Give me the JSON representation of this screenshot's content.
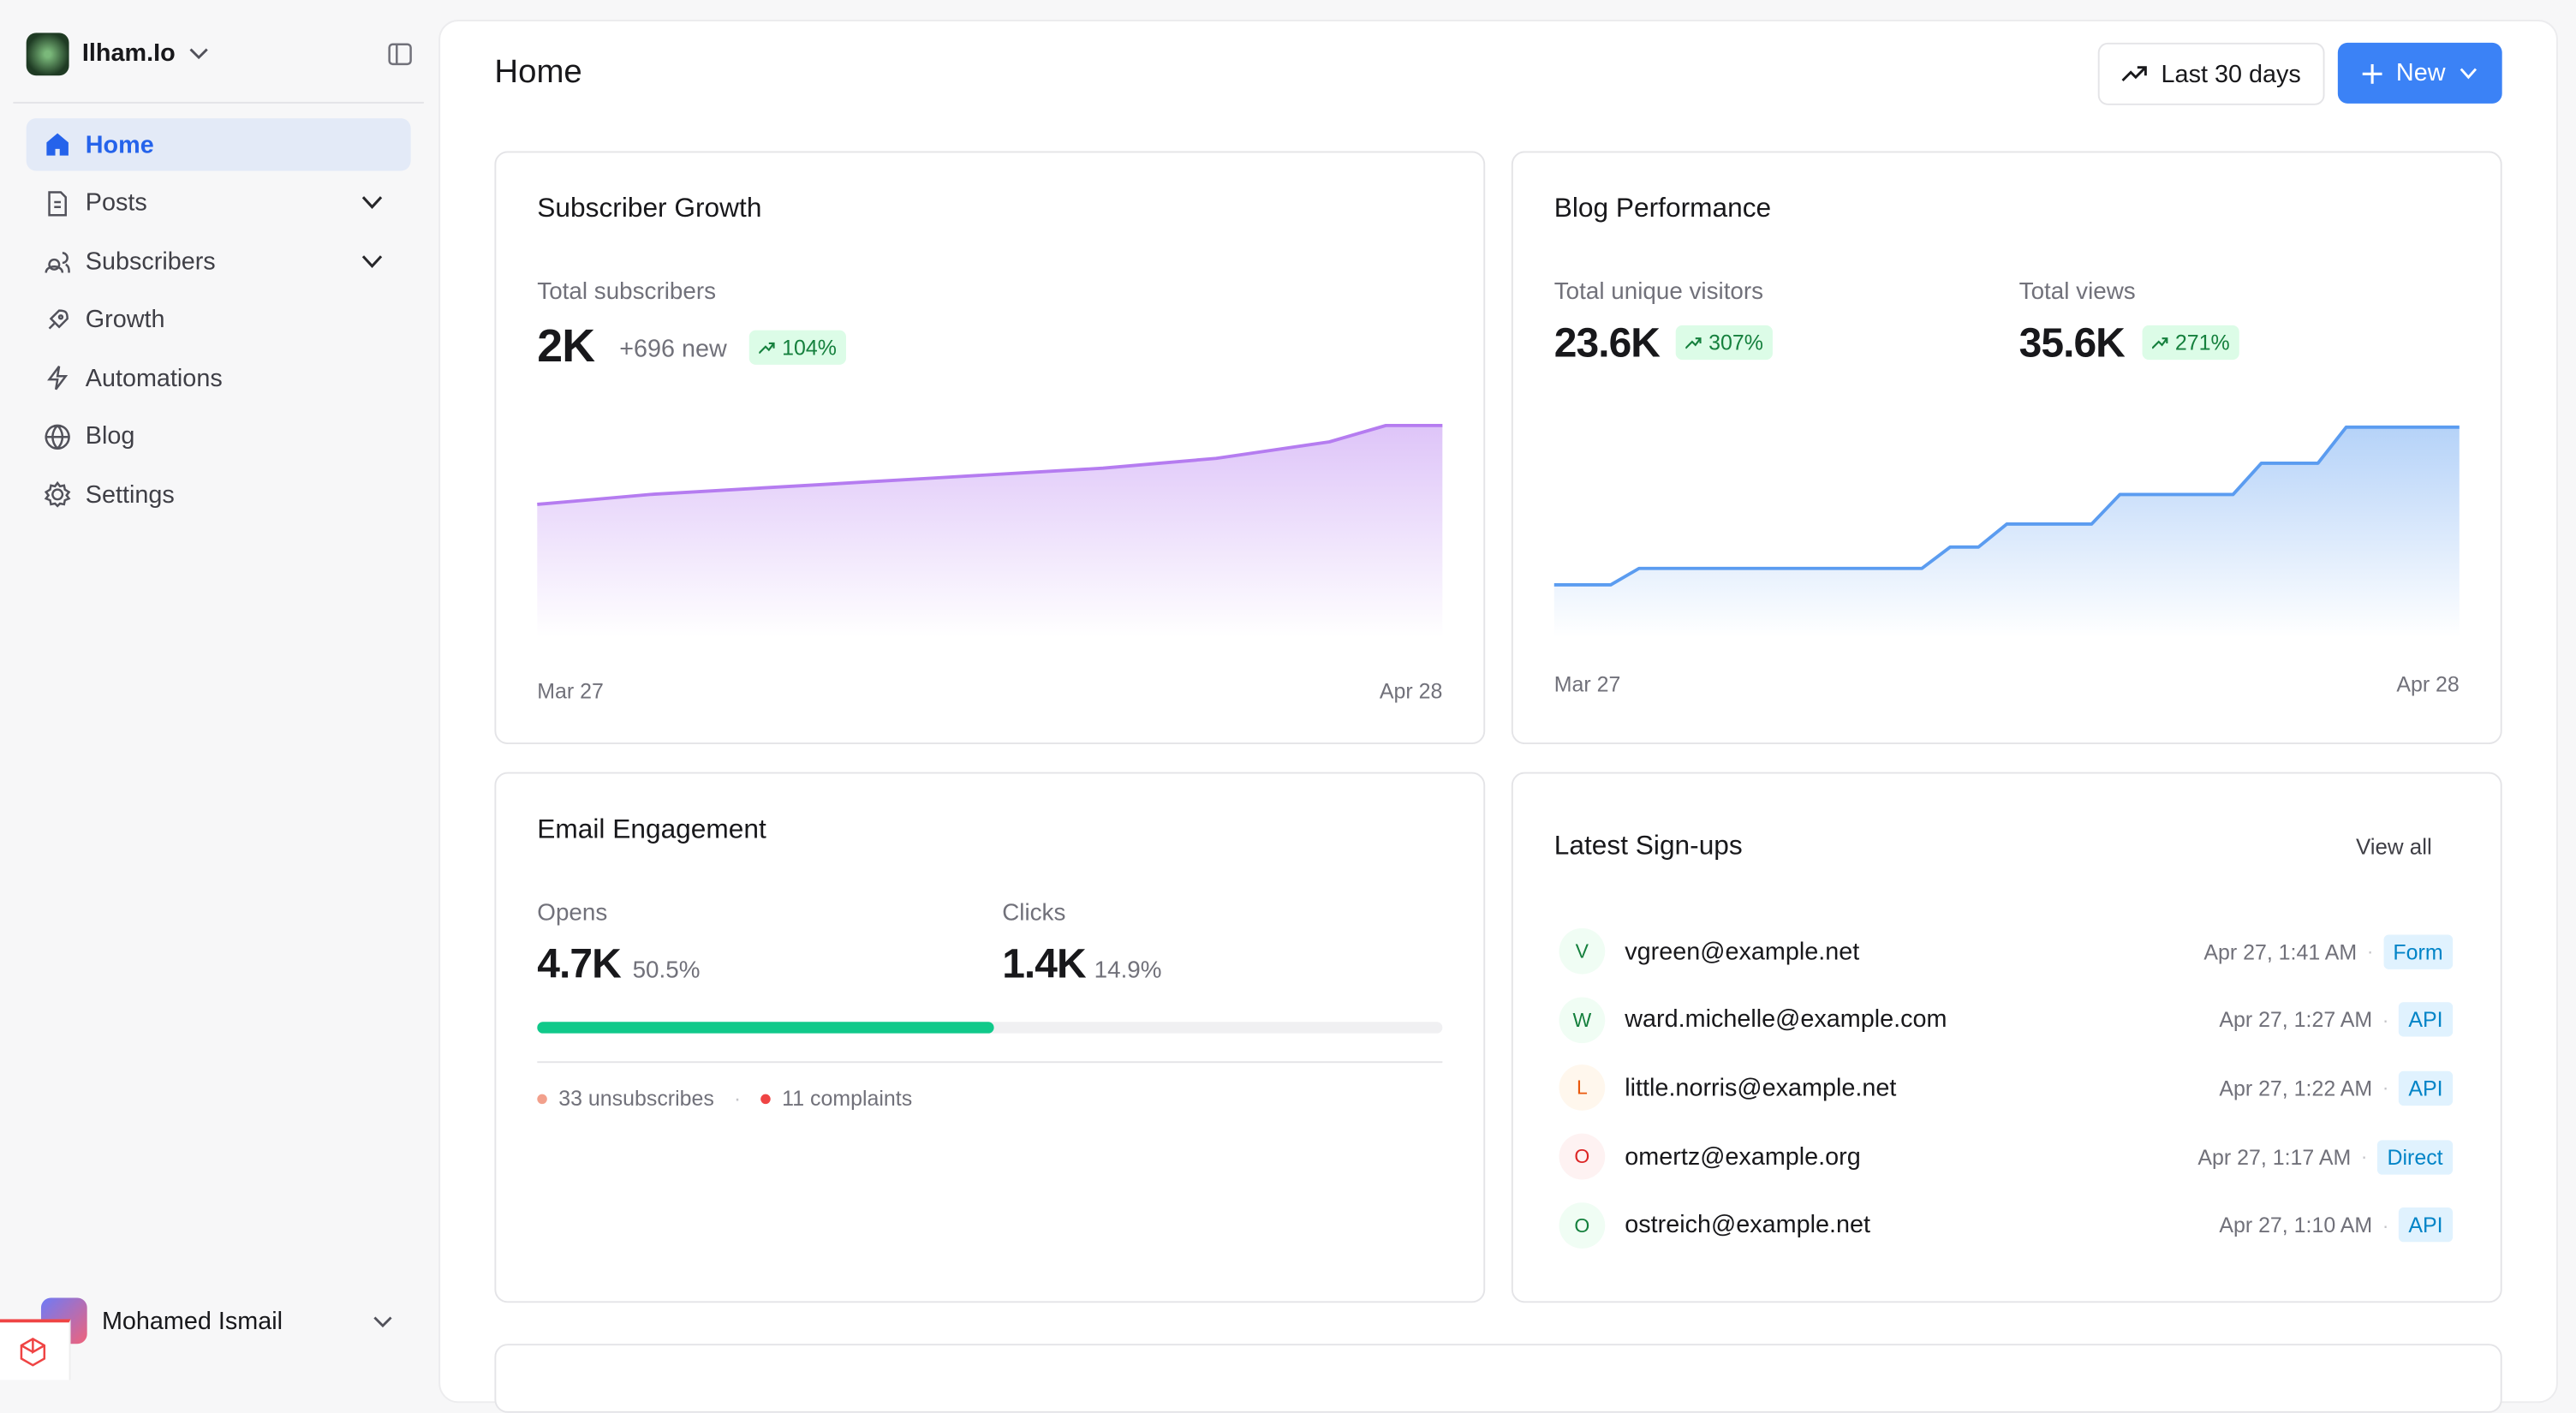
{
  "sidebar": {
    "workspace": "Ilham.Io",
    "nav": [
      "Home",
      "Posts",
      "Subscribers",
      "Growth",
      "Automations",
      "Blog",
      "Settings"
    ],
    "user": "Mohamed Ismail"
  },
  "header": {
    "title": "Home",
    "range_button": "Last 30 days",
    "new_button": "New"
  },
  "cards": {
    "subscriber_growth": {
      "title": "Subscriber Growth",
      "stat_label": "Total subscribers",
      "stat_value": "2K",
      "stat_new": "+696 new",
      "stat_change": "104%"
    },
    "blog_performance": {
      "title": "Blog Performance",
      "stats": [
        {
          "label": "Total unique visitors",
          "value": "23.6K",
          "change": "307%"
        },
        {
          "label": "Total views",
          "value": "35.6K",
          "change": "271%"
        }
      ]
    },
    "email_engagement": {
      "title": "Email Engagement",
      "opens_label": "Opens",
      "opens_value": "4.7K",
      "opens_share": {
        "value": 50.5,
        "label": "50.5%"
      },
      "clicks_label": "Clicks",
      "clicks_value": "1.4K",
      "clicks_share": "14.9%",
      "unsubscribes": "33 unsubscribes",
      "complaints": "11 complaints"
    },
    "latest_signups": {
      "title": "Latest Sign-ups",
      "view_all": "View all",
      "rows": [
        {
          "initial": "V",
          "email": "vgreen@example.net",
          "time": "Apr 27, 1:41 AM",
          "source": "Form"
        },
        {
          "initial": "W",
          "email": "ward.michelle@example.com",
          "time": "Apr 27, 1:27 AM",
          "source": "API"
        },
        {
          "initial": "L",
          "email": "little.norris@example.net",
          "time": "Apr 27, 1:22 AM",
          "source": "API"
        },
        {
          "initial": "O",
          "email": "omertz@example.org",
          "time": "Apr 27, 1:17 AM",
          "source": "Direct"
        },
        {
          "initial": "O",
          "email": "ostreich@example.net",
          "time": "Apr 27, 1:10 AM",
          "source": "API"
        }
      ]
    }
  },
  "chart_data": [
    {
      "type": "area",
      "color": "#b57cf0",
      "categories": [
        "Mar 27",
        null,
        null,
        null,
        null,
        null,
        null,
        null,
        null,
        null,
        null,
        null,
        null,
        null,
        null,
        null,
        "Apr 28"
      ],
      "values": [
        1244,
        1291,
        1339,
        1370,
        1402,
        1433,
        1465,
        1496,
        1528,
        1559,
        1591,
        1638,
        1685,
        1764,
        1843,
        2000,
        2000
      ],
      "ylim": [
        0,
        2000
      ]
    },
    {
      "type": "area",
      "color": "#5b9cf0",
      "categories": [
        "Mar 27",
        null,
        null,
        null,
        null,
        null,
        null,
        null,
        null,
        null,
        null,
        null,
        null,
        null,
        null,
        null,
        null,
        null,
        null,
        null,
        null,
        null,
        null,
        null,
        null,
        null,
        null,
        null,
        null,
        null,
        null,
        null,
        "Apr 28"
      ],
      "values": [
        8476,
        8476,
        8476,
        11302,
        11302,
        11302,
        11302,
        11302,
        11302,
        11302,
        11302,
        11302,
        11302,
        11302,
        14975,
        14975,
        18931,
        18931,
        18931,
        18931,
        24017,
        24017,
        24017,
        24017,
        24017,
        29385,
        29385,
        29385,
        35600,
        35600,
        35600,
        35600,
        35600
      ],
      "ylim": [
        0,
        35600
      ]
    }
  ]
}
